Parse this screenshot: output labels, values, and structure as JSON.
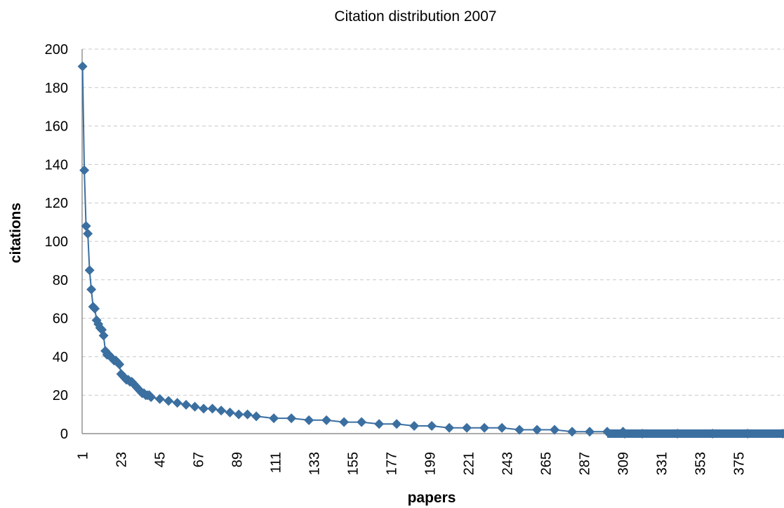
{
  "chart_data": {
    "type": "line",
    "title": "Citation distribution 2007",
    "xlabel": "papers",
    "ylabel": "citations",
    "ylim": [
      0,
      200
    ],
    "yticks": [
      0,
      20,
      40,
      60,
      80,
      100,
      120,
      140,
      160,
      180,
      200
    ],
    "xlim": [
      1,
      400
    ],
    "xticks": [
      1,
      23,
      45,
      67,
      89,
      111,
      133,
      155,
      177,
      199,
      221,
      243,
      265,
      287,
      309,
      331,
      353,
      375
    ],
    "grid": true,
    "legend": "none",
    "marker": "diamond",
    "color": "#3b6fa0",
    "series": [
      {
        "x": [
          1,
          2,
          3,
          4,
          5,
          6,
          7,
          8,
          9,
          10,
          11,
          12,
          13,
          14,
          15,
          16,
          17,
          18,
          19,
          20,
          21,
          22,
          23,
          24,
          25,
          26,
          27,
          28,
          29,
          30,
          31,
          32,
          33,
          34,
          35,
          36,
          37,
          38,
          39,
          40,
          45,
          50,
          55,
          60,
          65,
          70,
          75,
          80,
          85,
          90,
          95,
          100,
          110,
          120,
          130,
          140,
          150,
          160,
          170,
          180,
          190,
          200,
          210,
          220,
          230,
          240,
          250,
          260,
          270,
          280,
          290,
          300,
          309,
          310,
          320,
          340,
          360,
          380,
          400
        ],
        "y": [
          191,
          137,
          108,
          104,
          85,
          75,
          66,
          65,
          59,
          57,
          55,
          54,
          51,
          43,
          41,
          41,
          40,
          39,
          38,
          38,
          37,
          36,
          31,
          30,
          29,
          28,
          28,
          27,
          27,
          26,
          25,
          24,
          23,
          22,
          21,
          21,
          20,
          20,
          20,
          19,
          18,
          17,
          16,
          15,
          14,
          13,
          13,
          12,
          11,
          10,
          10,
          9,
          8,
          8,
          7,
          7,
          6,
          6,
          5,
          5,
          4,
          4,
          3,
          3,
          3,
          3,
          2,
          2,
          2,
          1,
          1,
          1,
          1,
          0,
          0,
          0,
          0,
          0,
          0
        ]
      }
    ]
  }
}
